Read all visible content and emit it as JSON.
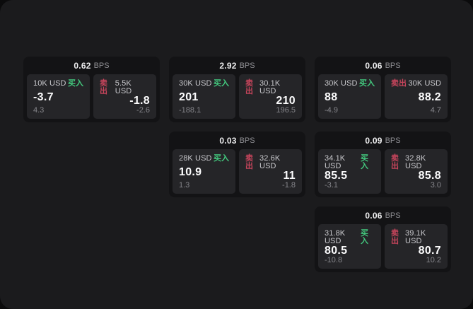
{
  "labels": {
    "bps": "BPS",
    "buy": "买入",
    "sell": "卖出"
  },
  "colors": {
    "surface": "#1b1b1d",
    "card": "#131315",
    "panel": "#252528",
    "buy": "#43c97e",
    "sell": "#c8455c"
  },
  "cards": [
    {
      "row": 1,
      "col": 1,
      "bps": "0.62",
      "buy": {
        "amount": "10K USD",
        "value": "-3.7",
        "delta": "4.3"
      },
      "sell": {
        "amount": "5.5K USD",
        "value": "-1.8",
        "delta": "-2.6"
      }
    },
    {
      "row": 1,
      "col": 2,
      "bps": "2.92",
      "buy": {
        "amount": "30K USD",
        "value": "201",
        "delta": "-188.1"
      },
      "sell": {
        "amount": "30.1K USD",
        "value": "210",
        "delta": "196.5"
      }
    },
    {
      "row": 1,
      "col": 3,
      "bps": "0.06",
      "buy": {
        "amount": "30K USD",
        "value": "88",
        "delta": "-4.9"
      },
      "sell": {
        "amount": "30K USD",
        "value": "88.2",
        "delta": "4.7"
      }
    },
    {
      "row": 2,
      "col": 2,
      "bps": "0.03",
      "buy": {
        "amount": "28K USD",
        "value": "10.9",
        "delta": "1.3"
      },
      "sell": {
        "amount": "32.6K USD",
        "value": "11",
        "delta": "-1.8"
      }
    },
    {
      "row": 2,
      "col": 3,
      "bps": "0.09",
      "buy": {
        "amount": "34.1K USD",
        "value": "85.5",
        "delta": "-3.1"
      },
      "sell": {
        "amount": "32.8K USD",
        "value": "85.8",
        "delta": "3.0"
      }
    },
    {
      "row": 3,
      "col": 3,
      "bps": "0.06",
      "buy": {
        "amount": "31.8K USD",
        "value": "80.5",
        "delta": "-10.8"
      },
      "sell": {
        "amount": "39.1K USD",
        "value": "80.7",
        "delta": "10.2"
      }
    }
  ]
}
